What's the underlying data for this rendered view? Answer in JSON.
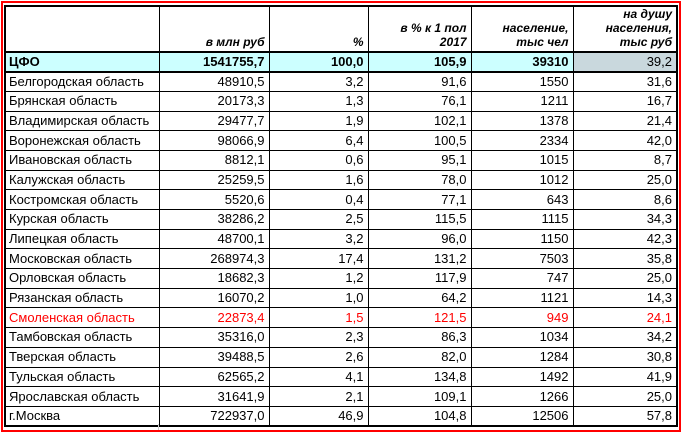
{
  "colors": {
    "frame": "#ff0000",
    "total_row_bg": "#ccffff",
    "total_last_cell_bg": "#c9d8dd",
    "alert_text": "#ff0000",
    "grid": "#000000"
  },
  "table": {
    "column_headers": [
      "",
      "в млн руб",
      "%",
      "в % к 1 пол 2017",
      "население,\nтыс чел",
      "на душу\nнаселения,\nтыс руб"
    ],
    "rows": [
      {
        "name": "ЦФО",
        "values": [
          "1541755,7",
          "100,0",
          "105,9",
          "39310",
          "39,2"
        ],
        "row_style": "total"
      },
      {
        "name": "Белгородская область",
        "values": [
          "48910,5",
          "3,2",
          "91,6",
          "1550",
          "31,6"
        ],
        "row_style": "normal"
      },
      {
        "name": "Брянская область",
        "values": [
          "20173,3",
          "1,3",
          "76,1",
          "1211",
          "16,7"
        ],
        "row_style": "normal"
      },
      {
        "name": "Владимирская область",
        "values": [
          "29477,7",
          "1,9",
          "102,1",
          "1378",
          "21,4"
        ],
        "row_style": "normal"
      },
      {
        "name": "Воронежская область",
        "values": [
          "98066,9",
          "6,4",
          "100,5",
          "2334",
          "42,0"
        ],
        "row_style": "normal"
      },
      {
        "name": "Ивановская область",
        "values": [
          "8812,1",
          "0,6",
          "95,1",
          "1015",
          "8,7"
        ],
        "row_style": "normal"
      },
      {
        "name": "Калужская область",
        "values": [
          "25259,5",
          "1,6",
          "78,0",
          "1012",
          "25,0"
        ],
        "row_style": "normal"
      },
      {
        "name": "Костромская область",
        "values": [
          "5520,6",
          "0,4",
          "77,1",
          "643",
          "8,6"
        ],
        "row_style": "normal"
      },
      {
        "name": "Курская область",
        "values": [
          "38286,2",
          "2,5",
          "115,5",
          "1115",
          "34,3"
        ],
        "row_style": "normal"
      },
      {
        "name": "Липецкая область",
        "values": [
          "48700,1",
          "3,2",
          "96,0",
          "1150",
          "42,3"
        ],
        "row_style": "normal"
      },
      {
        "name": "Московская область",
        "values": [
          "268974,3",
          "17,4",
          "131,2",
          "7503",
          "35,8"
        ],
        "row_style": "normal"
      },
      {
        "name": "Орловская область",
        "values": [
          "18682,3",
          "1,2",
          "117,9",
          "747",
          "25,0"
        ],
        "row_style": "normal"
      },
      {
        "name": "Рязанская область",
        "values": [
          "16070,2",
          "1,0",
          "64,2",
          "1121",
          "14,3"
        ],
        "row_style": "normal"
      },
      {
        "name": "Смоленская область",
        "values": [
          "22873,4",
          "1,5",
          "121,5",
          "949",
          "24,1"
        ],
        "row_style": "alert"
      },
      {
        "name": "Тамбовская область",
        "values": [
          "35316,0",
          "2,3",
          "86,3",
          "1034",
          "34,2"
        ],
        "row_style": "normal"
      },
      {
        "name": "Тверская область",
        "values": [
          "39488,5",
          "2,6",
          "82,0",
          "1284",
          "30,8"
        ],
        "row_style": "normal"
      },
      {
        "name": "Тульская область",
        "values": [
          "62565,2",
          "4,1",
          "134,8",
          "1492",
          "41,9"
        ],
        "row_style": "normal"
      },
      {
        "name": "Ярославская область",
        "values": [
          "31641,9",
          "2,1",
          "109,1",
          "1266",
          "25,0"
        ],
        "row_style": "normal"
      },
      {
        "name": "г.Москва",
        "values": [
          "722937,0",
          "46,9",
          "104,8",
          "12506",
          "57,8"
        ],
        "row_style": "normal"
      }
    ]
  }
}
